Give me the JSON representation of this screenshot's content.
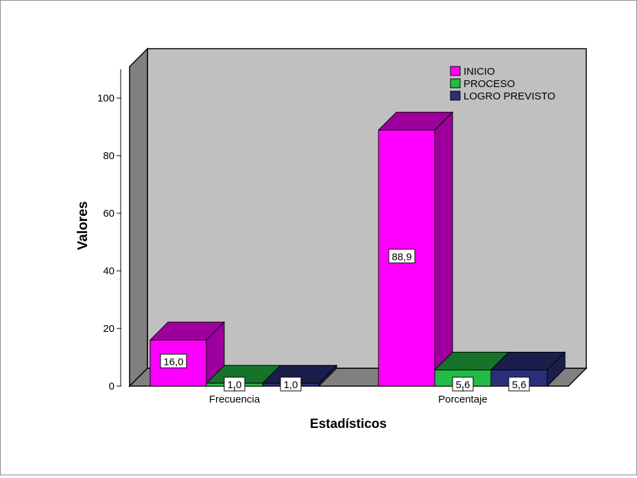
{
  "chart_data": {
    "type": "bar",
    "title": "",
    "xlabel": "Estadísticos",
    "ylabel": "Valores",
    "categories": [
      "Frecuencia",
      "Porcentaje"
    ],
    "ylim": [
      0,
      110
    ],
    "yticks": [
      0,
      20,
      40,
      60,
      80,
      100
    ],
    "grid": false,
    "legend_position": "top-right",
    "series": [
      {
        "name": "INICIO",
        "values": [
          16.0,
          88.9
        ],
        "labels": [
          "16,0",
          "88,9"
        ],
        "color": "#ff00ff"
      },
      {
        "name": "PROCESO",
        "values": [
          1.0,
          5.6
        ],
        "labels": [
          "1,0",
          "5,6"
        ],
        "color": "#22bb44"
      },
      {
        "name": "LOGRO PREVISTO",
        "values": [
          1.0,
          5.6
        ],
        "labels": [
          "1,0",
          "5,6"
        ],
        "color": "#2b2f7a"
      }
    ],
    "style": {
      "back_wall": "#c0c0c0",
      "side_wall": "#808080",
      "floor": "#808080",
      "background": "#ffffff"
    }
  }
}
